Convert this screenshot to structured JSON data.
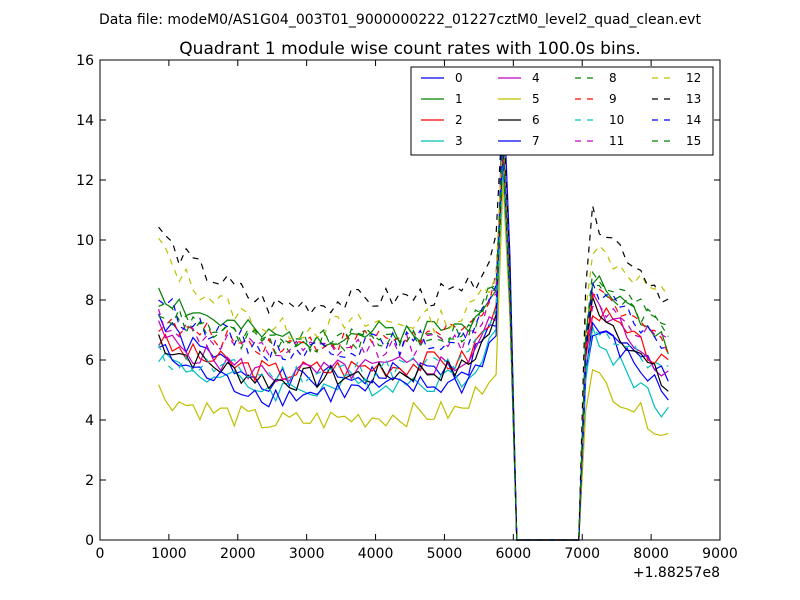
{
  "suptitle": "Data file: modeM0/AS1G04_003T01_9000000222_01227cztM0_level2_quad_clean.evt",
  "chart_data": {
    "type": "line",
    "title": "Quadrant 1 module wise count rates with 100.0s bins.",
    "xlabel": "",
    "ylabel": "",
    "x_offset_label": "+1.88257e8",
    "xlim": [
      0,
      9000
    ],
    "ylim": [
      0,
      16
    ],
    "x_ticks": [
      "0",
      "1000",
      "2000",
      "3000",
      "4000",
      "5000",
      "6000",
      "7000",
      "8000",
      "9000"
    ],
    "y_ticks": [
      "0",
      "2",
      "4",
      "6",
      "8",
      "10",
      "12",
      "14",
      "16"
    ],
    "legend_position": "top-right",
    "grid": false,
    "series": [
      {
        "name": "0",
        "color": "#0000ff",
        "dash": "solid",
        "start": 7.5,
        "mid": 5.3,
        "peak": 13.0,
        "post": 7.0,
        "end": 5.5,
        "seed": 1
      },
      {
        "name": "1",
        "color": "#008000",
        "dash": "solid",
        "start": 8.5,
        "mid": 6.7,
        "peak": 13.5,
        "post": 8.8,
        "end": 6.5,
        "seed": 2
      },
      {
        "name": "2",
        "color": "#ff0000",
        "dash": "solid",
        "start": 6.7,
        "mid": 5.6,
        "peak": 12.8,
        "post": 7.8,
        "end": 5.7,
        "seed": 3
      },
      {
        "name": "3",
        "color": "#00bfbf",
        "dash": "solid",
        "start": 6.3,
        "mid": 5.0,
        "peak": 12.5,
        "post": 6.8,
        "end": 4.2,
        "seed": 4
      },
      {
        "name": "4",
        "color": "#bf00bf",
        "dash": "solid",
        "start": 7.0,
        "mid": 5.5,
        "peak": 13.8,
        "post": 8.0,
        "end": 5.5,
        "seed": 5
      },
      {
        "name": "5",
        "color": "#bfbf00",
        "dash": "solid",
        "start": 5.0,
        "mid": 3.9,
        "peak": 12.0,
        "post": 5.5,
        "end": 3.5,
        "seed": 6
      },
      {
        "name": "6",
        "color": "#000000",
        "dash": "solid",
        "start": 6.8,
        "mid": 5.3,
        "peak": 13.0,
        "post": 8.0,
        "end": 5.0,
        "seed": 7
      },
      {
        "name": "7",
        "color": "#0000ff",
        "dash": "solid",
        "start": 6.5,
        "mid": 4.8,
        "peak": 15.3,
        "post": 7.2,
        "end": 4.8,
        "seed": 8
      },
      {
        "name": "8",
        "color": "#008000",
        "dash": "dashed",
        "start": 8.0,
        "mid": 6.5,
        "peak": 13.5,
        "post": 8.5,
        "end": 7.0,
        "seed": 9
      },
      {
        "name": "9",
        "color": "#ff0000",
        "dash": "dashed",
        "start": 7.3,
        "mid": 6.5,
        "peak": 13.0,
        "post": 8.2,
        "end": 6.5,
        "seed": 10
      },
      {
        "name": "10",
        "color": "#00bfbf",
        "dash": "dashed",
        "start": 6.2,
        "mid": 5.5,
        "peak": 12.5,
        "post": 7.2,
        "end": 5.5,
        "seed": 11
      },
      {
        "name": "11",
        "color": "#bf00bf",
        "dash": "dashed",
        "start": 7.5,
        "mid": 6.2,
        "peak": 13.2,
        "post": 8.0,
        "end": 6.5,
        "seed": 12
      },
      {
        "name": "12",
        "color": "#bfbf00",
        "dash": "dashed",
        "start": 10.0,
        "mid": 7.0,
        "peak": 13.8,
        "post": 9.8,
        "end": 8.0,
        "seed": 13
      },
      {
        "name": "13",
        "color": "#000000",
        "dash": "dashed",
        "start": 10.5,
        "mid": 7.8,
        "peak": 14.5,
        "post": 10.8,
        "end": 8.0,
        "seed": 14
      },
      {
        "name": "14",
        "color": "#0000ff",
        "dash": "dashed",
        "start": 8.2,
        "mid": 6.3,
        "peak": 13.0,
        "post": 8.3,
        "end": 6.5,
        "seed": 15
      },
      {
        "name": "15",
        "color": "#008000",
        "dash": "dashed",
        "start": 7.8,
        "mid": 6.5,
        "peak": 13.2,
        "post": 8.7,
        "end": 7.3,
        "seed": 16
      }
    ]
  }
}
